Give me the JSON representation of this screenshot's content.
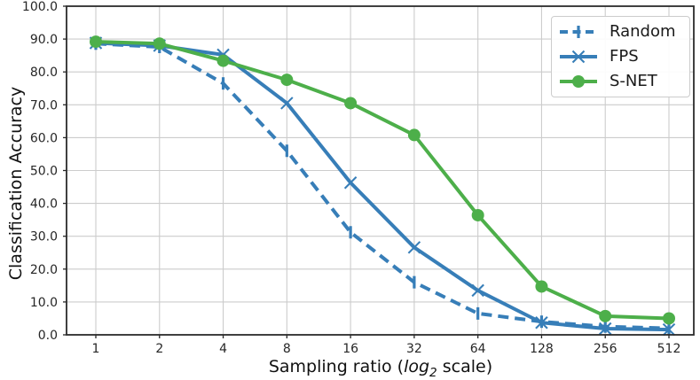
{
  "chart_data": {
    "type": "line",
    "title": "",
    "xlabel": "Sampling ratio (log2 scale)",
    "xlabel_parts": {
      "pre": "Sampling ratio (",
      "italic": "log",
      "sub": "2",
      "post": " scale)"
    },
    "ylabel": "Classification Accuracy",
    "x_scale": "log2",
    "categories": [
      1,
      2,
      4,
      8,
      16,
      32,
      64,
      128,
      256,
      512
    ],
    "x_tick_labels": [
      "1",
      "2",
      "4",
      "8",
      "16",
      "32",
      "64",
      "128",
      "256",
      "512"
    ],
    "ylim": [
      0,
      100
    ],
    "y_tick_values": [
      0,
      10,
      20,
      30,
      40,
      50,
      60,
      70,
      80,
      90,
      100
    ],
    "y_tick_labels": [
      "0.0",
      "10.0",
      "20.0",
      "30.0",
      "40.0",
      "50.0",
      "60.0",
      "70.0",
      "80.0",
      "90.0",
      "100.0"
    ],
    "grid": true,
    "legend_position": "upper right",
    "series": [
      {
        "name": "Random",
        "color": "#377eb8",
        "line_style": "dashed",
        "marker": "vline",
        "values": [
          88.6,
          87.6,
          76.5,
          56.0,
          31.2,
          16.0,
          6.5,
          4.0,
          2.5,
          2.0
        ]
      },
      {
        "name": "FPS",
        "color": "#377eb8",
        "line_style": "solid",
        "marker": "x",
        "values": [
          88.8,
          88.0,
          85.2,
          70.5,
          46.3,
          26.6,
          13.5,
          3.7,
          1.9,
          1.6
        ]
      },
      {
        "name": "S-NET",
        "color": "#4daf4a",
        "line_style": "solid",
        "marker": "circle",
        "values": [
          89.2,
          88.6,
          83.4,
          77.6,
          70.5,
          60.8,
          36.4,
          14.7,
          5.7,
          5.0
        ]
      }
    ],
    "colors": {
      "grid": "#cccccc",
      "frame": "#2b2b2b",
      "tick": "#262626",
      "background": "#ffffff"
    }
  }
}
